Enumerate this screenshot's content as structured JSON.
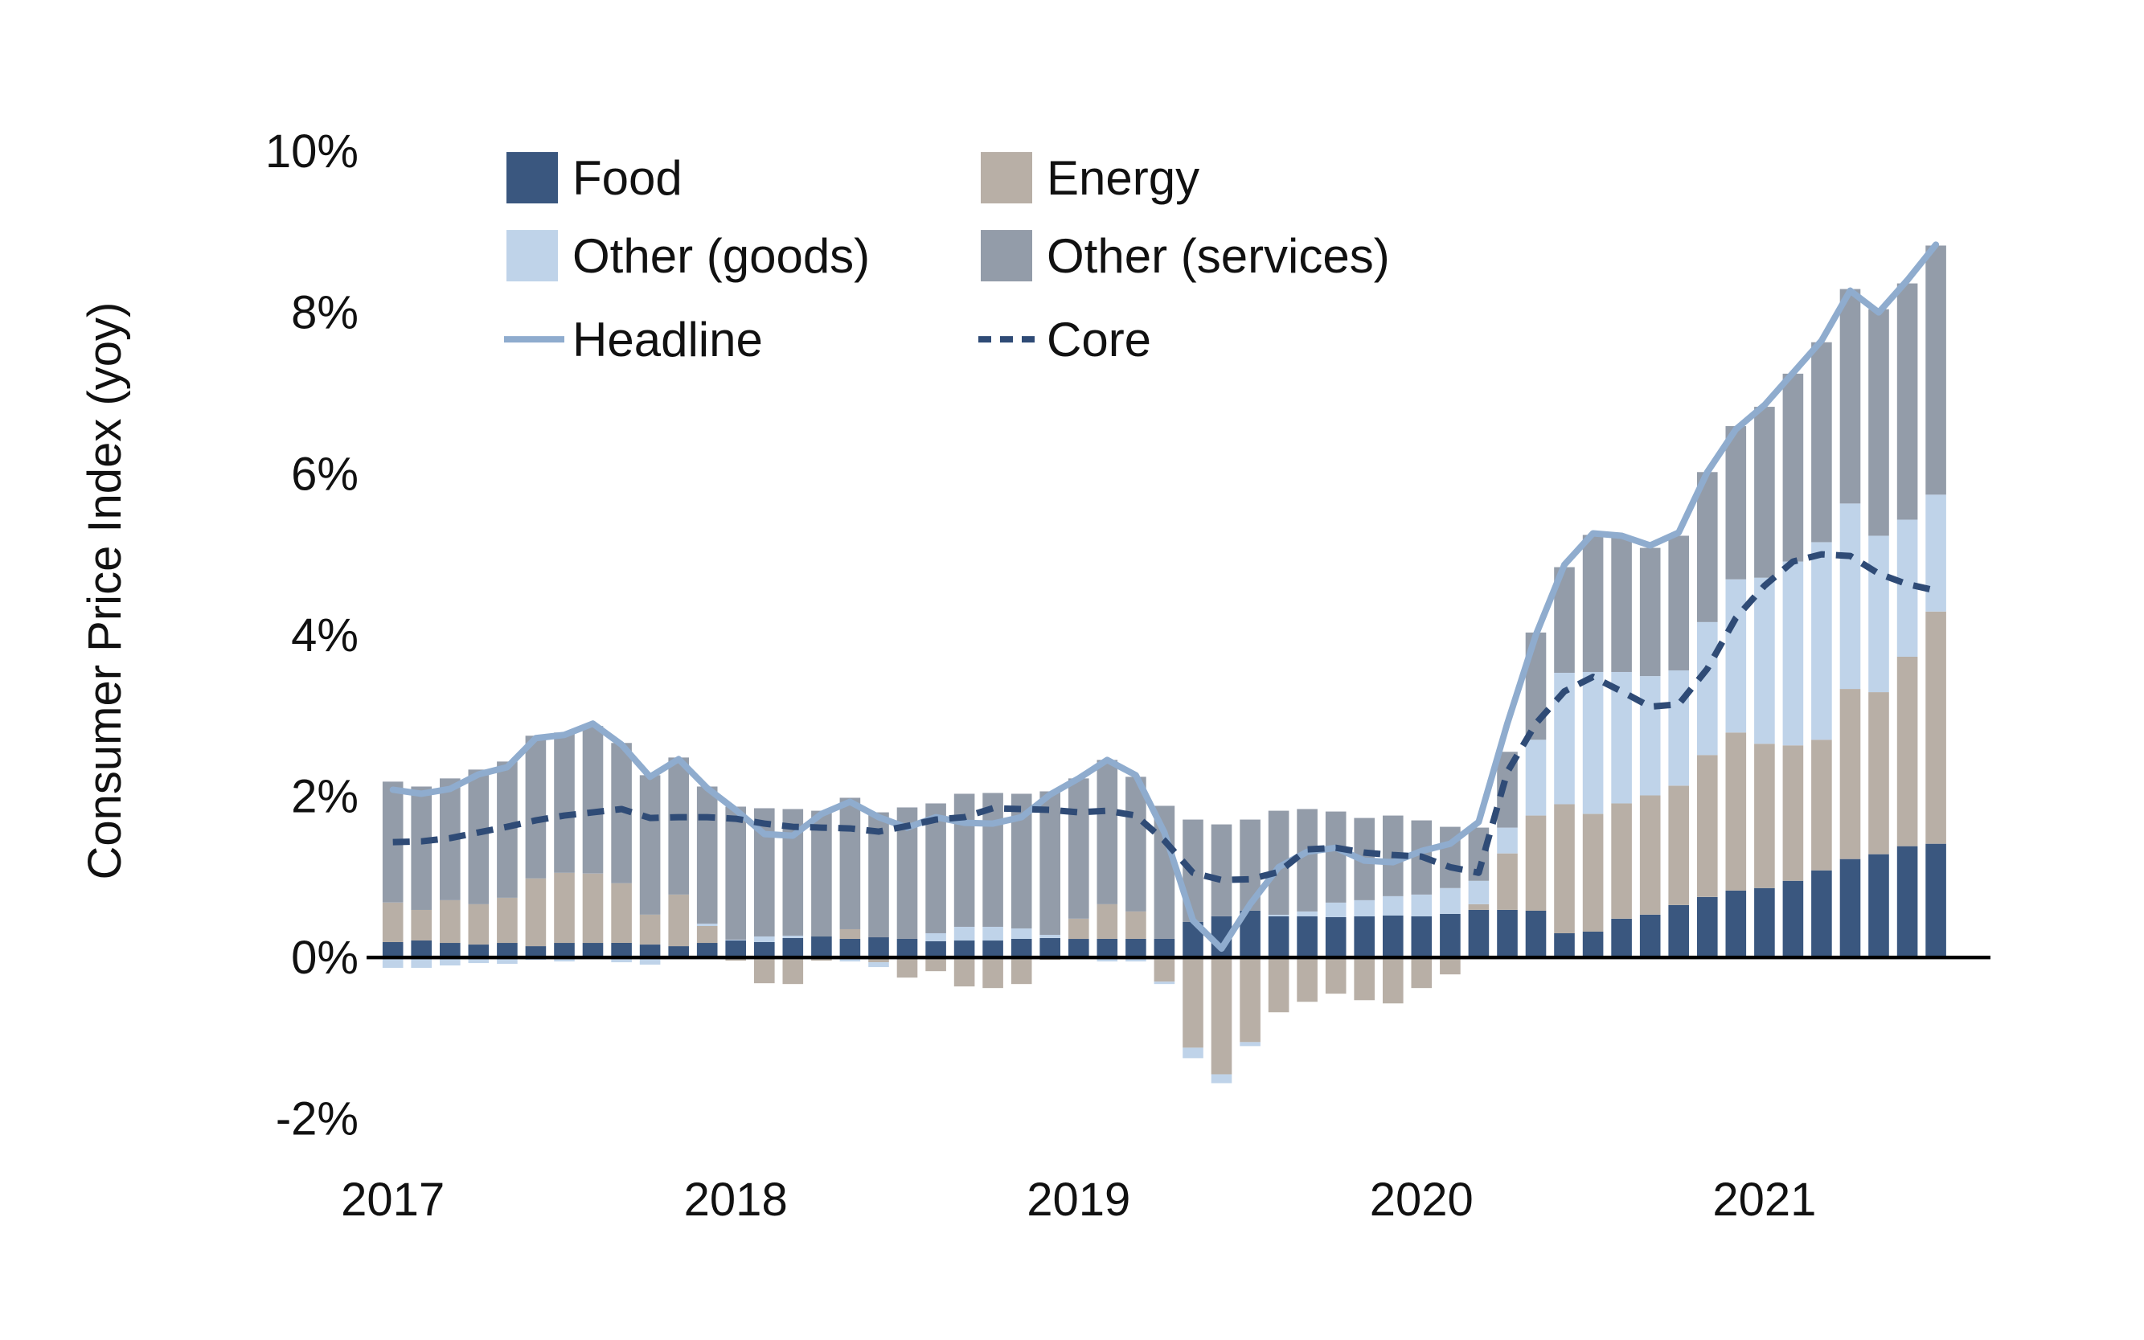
{
  "y_axis": {
    "title": "Consumer Price Index (yoy)",
    "ticks": [
      {
        "value": 10,
        "label": "10%"
      },
      {
        "value": 8,
        "label": "8%"
      },
      {
        "value": 6,
        "label": "6%"
      },
      {
        "value": 4,
        "label": "4%"
      },
      {
        "value": 2,
        "label": "2%"
      },
      {
        "value": 0,
        "label": "0%"
      },
      {
        "value": -2,
        "label": "-2%"
      }
    ]
  },
  "x_axis": {
    "years": [
      {
        "label": "2017",
        "month_index": 0
      },
      {
        "label": "2018",
        "month_index": 12
      },
      {
        "label": "2019",
        "month_index": 24
      },
      {
        "label": "2020",
        "month_index": 36
      },
      {
        "label": "2021",
        "month_index": 48
      }
    ]
  },
  "legend": [
    {
      "id": "food",
      "label": "Food",
      "type": "swatch",
      "col": 0,
      "row": 0
    },
    {
      "id": "energy",
      "label": "Energy",
      "type": "swatch",
      "col": 1,
      "row": 0
    },
    {
      "id": "other_goods",
      "label": "Other (goods)",
      "type": "swatch",
      "col": 0,
      "row": 1
    },
    {
      "id": "other_services",
      "label": "Other (services)",
      "type": "swatch",
      "col": 1,
      "row": 1
    },
    {
      "id": "headline",
      "label": "Headline",
      "type": "line",
      "col": 0,
      "row": 2
    },
    {
      "id": "core",
      "label": "Core",
      "type": "dash",
      "col": 1,
      "row": 2
    }
  ],
  "colors": {
    "food": "#3A577F",
    "energy": "#B8AFA6",
    "other_goods": "#BFD3E9",
    "other_services": "#939CA9",
    "headline": "#8FACCE",
    "core": "#2F4B76",
    "axis_line": "#000000",
    "text": "#111111"
  },
  "chart_data": {
    "type": "bar",
    "stacked": true,
    "title": "",
    "xlabel": "",
    "ylabel": "Consumer Price Index (yoy)",
    "ylim": [
      -2,
      10
    ],
    "grid": false,
    "legend_position": "top-left-inside",
    "months": [
      "2017-01",
      "2017-02",
      "2017-03",
      "2017-04",
      "2017-05",
      "2017-06",
      "2017-07",
      "2017-08",
      "2017-09",
      "2017-10",
      "2017-11",
      "2017-12",
      "2018-01",
      "2018-02",
      "2018-03",
      "2018-04",
      "2018-05",
      "2018-06",
      "2018-07",
      "2018-08",
      "2018-09",
      "2018-10",
      "2018-11",
      "2018-12",
      "2019-01",
      "2019-02",
      "2019-03",
      "2019-04",
      "2019-05",
      "2019-06",
      "2019-07",
      "2019-08",
      "2019-09",
      "2019-10",
      "2019-11",
      "2019-12",
      "2020-01",
      "2020-02",
      "2020-03",
      "2020-04",
      "2020-05",
      "2020-06",
      "2020-07",
      "2020-08",
      "2020-09",
      "2020-10",
      "2020-11",
      "2020-12",
      "2021-01",
      "2021-02",
      "2021-03",
      "2021-04",
      "2021-05",
      "2021-06",
      "2021-07"
    ],
    "series": [
      {
        "name": "Food",
        "key": "food",
        "values": [
          0.19,
          0.21,
          0.18,
          0.16,
          0.18,
          0.14,
          0.18,
          0.18,
          0.18,
          0.16,
          0.14,
          0.18,
          0.21,
          0.19,
          0.24,
          0.26,
          0.23,
          0.25,
          0.23,
          0.2,
          0.21,
          0.21,
          0.23,
          0.24,
          0.23,
          0.23,
          0.23,
          0.23,
          0.44,
          0.51,
          0.58,
          0.51,
          0.51,
          0.5,
          0.51,
          0.52,
          0.51,
          0.54,
          0.59,
          0.59,
          0.58,
          0.3,
          0.32,
          0.48,
          0.53,
          0.65,
          0.75,
          0.83,
          0.86,
          0.95,
          1.08,
          1.22,
          1.28,
          1.38,
          1.41
        ]
      },
      {
        "name": "Energy",
        "key": "energy",
        "values": [
          0.49,
          0.38,
          0.53,
          0.5,
          0.56,
          0.84,
          0.87,
          0.86,
          0.74,
          0.37,
          0.64,
          0.21,
          -0.04,
          -0.32,
          -0.33,
          -0.04,
          0.12,
          -0.06,
          -0.25,
          -0.17,
          -0.36,
          -0.38,
          -0.33,
          -0.03,
          0.25,
          0.43,
          0.34,
          -0.3,
          -1.12,
          -1.45,
          -1.05,
          -0.68,
          -0.55,
          -0.45,
          -0.53,
          -0.57,
          -0.38,
          -0.21,
          0.07,
          0.7,
          1.18,
          1.6,
          1.46,
          1.43,
          1.48,
          1.48,
          1.76,
          1.96,
          1.79,
          1.68,
          1.62,
          2.11,
          2.01,
          2.35,
          2.88
        ]
      },
      {
        "name": "Other (goods)",
        "key": "other_goods",
        "values": [
          -0.13,
          -0.13,
          -0.1,
          -0.07,
          -0.08,
          -0.03,
          -0.05,
          0.0,
          -0.06,
          -0.09,
          0.0,
          0.03,
          0.01,
          0.07,
          0.03,
          0.0,
          -0.05,
          -0.06,
          0.0,
          0.1,
          0.17,
          0.17,
          0.13,
          0.04,
          -0.02,
          -0.05,
          -0.05,
          -0.03,
          -0.13,
          -0.11,
          -0.05,
          0.02,
          0.06,
          0.18,
          0.2,
          0.24,
          0.27,
          0.32,
          0.29,
          0.32,
          0.94,
          1.63,
          1.76,
          1.63,
          1.48,
          1.43,
          1.65,
          1.9,
          2.06,
          2.28,
          2.45,
          2.3,
          1.94,
          1.7,
          1.45
        ]
      },
      {
        "name": "Other (services)",
        "key": "other_services",
        "values": [
          1.5,
          1.53,
          1.51,
          1.67,
          1.69,
          1.77,
          1.74,
          1.83,
          1.74,
          1.73,
          1.7,
          1.7,
          1.65,
          1.59,
          1.57,
          1.56,
          1.63,
          1.55,
          1.63,
          1.61,
          1.65,
          1.66,
          1.67,
          1.78,
          1.74,
          1.79,
          1.67,
          1.65,
          1.27,
          1.14,
          1.13,
          1.29,
          1.27,
          1.13,
          1.02,
          1.0,
          0.92,
          0.76,
          0.66,
          0.94,
          1.33,
          1.31,
          1.7,
          1.67,
          1.59,
          1.67,
          1.86,
          1.9,
          2.12,
          2.33,
          2.48,
          2.66,
          2.81,
          2.93,
          3.09
        ]
      }
    ],
    "lines": [
      {
        "name": "Headline",
        "key": "headline",
        "style": "solid",
        "values": [
          2.08,
          2.03,
          2.09,
          2.27,
          2.36,
          2.72,
          2.76,
          2.9,
          2.64,
          2.24,
          2.46,
          2.1,
          1.83,
          1.53,
          1.51,
          1.78,
          1.93,
          1.74,
          1.61,
          1.74,
          1.67,
          1.66,
          1.74,
          2.02,
          2.22,
          2.45,
          2.26,
          1.55,
          0.46,
          0.11,
          0.66,
          1.12,
          1.31,
          1.36,
          1.2,
          1.18,
          1.32,
          1.41,
          1.68,
          2.9,
          4.0,
          4.87,
          5.26,
          5.23,
          5.11,
          5.27,
          6.02,
          6.55,
          6.85,
          7.25,
          7.65,
          8.27,
          8.0,
          8.4,
          8.84
        ]
      },
      {
        "name": "Core",
        "key": "core",
        "style": "dashed",
        "values": [
          1.43,
          1.44,
          1.48,
          1.55,
          1.62,
          1.7,
          1.76,
          1.8,
          1.84,
          1.73,
          1.74,
          1.74,
          1.72,
          1.66,
          1.62,
          1.61,
          1.6,
          1.56,
          1.63,
          1.71,
          1.74,
          1.85,
          1.84,
          1.83,
          1.8,
          1.82,
          1.76,
          1.45,
          1.05,
          0.96,
          0.97,
          1.06,
          1.34,
          1.36,
          1.3,
          1.27,
          1.25,
          1.12,
          1.05,
          2.3,
          2.9,
          3.3,
          3.48,
          3.3,
          3.11,
          3.14,
          3.58,
          4.21,
          4.61,
          4.91,
          5.0,
          4.98,
          4.76,
          4.63,
          4.55
        ]
      }
    ]
  }
}
